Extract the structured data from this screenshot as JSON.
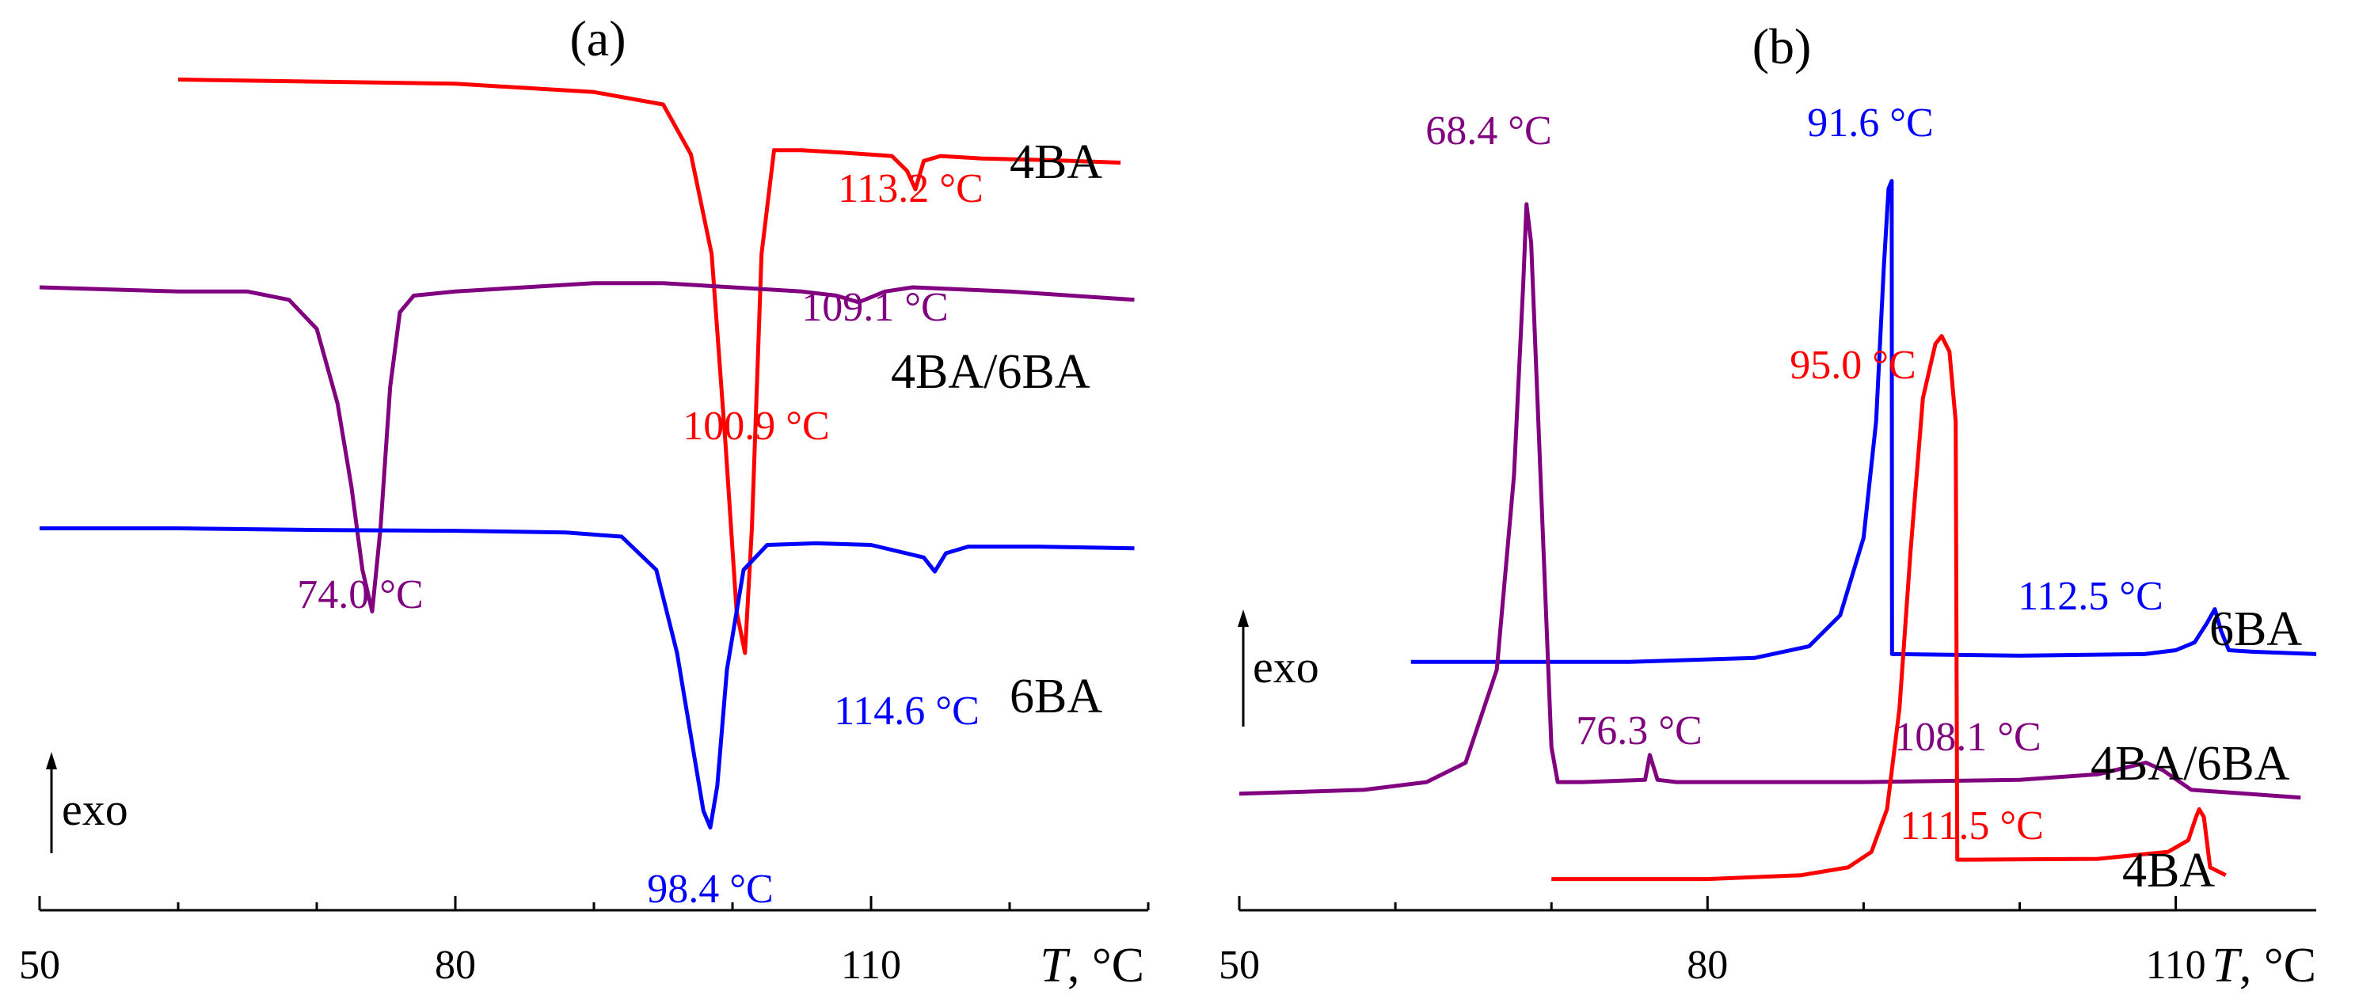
{
  "chart_data": [
    {
      "type": "line",
      "title": "(a)",
      "xlabel": "T, °C",
      "xlabel_italic": "T",
      "xlabel_unit": ", °C",
      "xlim": [
        50,
        130
      ],
      "x_ticks": [
        50,
        80,
        110
      ],
      "x_minor_step": 10,
      "exo_label": "exo",
      "series": [
        {
          "name": "4BA",
          "color": "#ff0000",
          "baseline": 0.92,
          "x": [
            60,
            80,
            90,
            95,
            97,
            98.5,
            99.5,
            100.3,
            100.9,
            101.4,
            102.1,
            103.0,
            105.0,
            108.0,
            111.5,
            112.6,
            113.2,
            113.8,
            115.0,
            118.0,
            123.0,
            128.0
          ],
          "y": [
            0.99,
            0.985,
            0.975,
            0.96,
            0.9,
            0.78,
            0.55,
            0.35,
            0.3,
            0.45,
            0.78,
            0.905,
            0.905,
            0.902,
            0.898,
            0.88,
            0.858,
            0.892,
            0.898,
            0.895,
            0.893,
            0.89
          ],
          "peak_labels": [
            {
              "x": 100.9,
              "y": 0.3,
              "text": "100.9 °C"
            },
            {
              "x": 113.2,
              "y": 0.858,
              "text": "113.2 °C"
            }
          ]
        },
        {
          "name": "4BA/6BA",
          "color": "#800080",
          "baseline": 0.66,
          "x": [
            50,
            60,
            65,
            68,
            70,
            71.5,
            72.5,
            73.3,
            74.0,
            74.6,
            75.3,
            76.0,
            77.0,
            80.0,
            85.0,
            90.0,
            95.0,
            100.0,
            105.0,
            107.5,
            109.1,
            111.0,
            113.0,
            120.0,
            129.0
          ],
          "y": [
            0.74,
            0.735,
            0.735,
            0.725,
            0.69,
            0.6,
            0.5,
            0.4,
            0.35,
            0.45,
            0.62,
            0.71,
            0.73,
            0.735,
            0.74,
            0.745,
            0.745,
            0.74,
            0.735,
            0.73,
            0.722,
            0.735,
            0.74,
            0.735,
            0.725
          ],
          "peak_labels": [
            {
              "x": 74.0,
              "y": 0.35,
              "text": "74.0 °C"
            },
            {
              "x": 109.1,
              "y": 0.722,
              "text": "109.1 °C"
            }
          ]
        },
        {
          "name": "6BA",
          "color": "#0000ff",
          "baseline": 0.36,
          "x": [
            50,
            60,
            70,
            80,
            88,
            92,
            94.5,
            96.0,
            97.2,
            97.9,
            98.4,
            98.9,
            99.6,
            100.8,
            102.5,
            106.0,
            110.0,
            113.8,
            114.6,
            115.4,
            117.0,
            122.0,
            129.0
          ],
          "y": [
            0.45,
            0.45,
            0.448,
            0.447,
            0.445,
            0.44,
            0.4,
            0.3,
            0.18,
            0.11,
            0.09,
            0.14,
            0.28,
            0.4,
            0.43,
            0.432,
            0.43,
            0.415,
            0.398,
            0.42,
            0.428,
            0.428,
            0.426
          ],
          "peak_labels": [
            {
              "x": 98.4,
              "y": 0.09,
              "text": "98.4 °C"
            },
            {
              "x": 114.6,
              "y": 0.398,
              "text": "114.6 °C"
            }
          ]
        }
      ]
    },
    {
      "type": "line",
      "title": "(b)",
      "xlabel": "T, °C",
      "xlabel_italic": "T",
      "xlabel_unit": ", °C",
      "xlim": [
        50,
        119
      ],
      "x_ticks": [
        50,
        80,
        110
      ],
      "x_minor_step": 10,
      "exo_label": "exo",
      "series": [
        {
          "name": "6BA",
          "color": "#0000ff",
          "baseline": 0.31,
          "x": [
            61,
            75,
            83,
            86.5,
            88.5,
            90.0,
            90.8,
            91.3,
            91.6,
            91.8,
            91.82,
            92.1,
            100,
            108,
            110,
            111.2,
            112.0,
            112.5,
            112.9,
            113.4,
            115,
            119
          ],
          "y": [
            0.31,
            0.31,
            0.315,
            0.33,
            0.37,
            0.47,
            0.62,
            0.82,
            0.92,
            0.93,
            0.32,
            0.32,
            0.318,
            0.32,
            0.325,
            0.335,
            0.36,
            0.378,
            0.35,
            0.325,
            0.323,
            0.32
          ],
          "peak_labels": [
            {
              "x": 91.6,
              "y": 0.93,
              "text": "91.6 °C"
            },
            {
              "x": 112.5,
              "y": 0.378,
              "text": "112.5 °C"
            }
          ]
        },
        {
          "name": "4BA/6BA",
          "color": "#800080",
          "baseline": 0.14,
          "x": [
            50,
            58,
            62,
            64.5,
            66.5,
            67.6,
            68.2,
            68.4,
            68.7,
            69.3,
            70.0,
            70.4,
            72,
            76.0,
            76.3,
            76.8,
            78,
            90,
            100,
            105,
            108.1,
            109.2,
            111,
            118
          ],
          "y": [
            0.14,
            0.145,
            0.155,
            0.18,
            0.3,
            0.55,
            0.8,
            0.9,
            0.85,
            0.55,
            0.2,
            0.155,
            0.155,
            0.158,
            0.19,
            0.158,
            0.155,
            0.155,
            0.158,
            0.165,
            0.18,
            0.17,
            0.145,
            0.135
          ],
          "peak_labels": [
            {
              "x": 68.4,
              "y": 0.9,
              "text": "68.4 °C"
            },
            {
              "x": 76.3,
              "y": 0.19,
              "text": "76.3 °C"
            },
            {
              "x": 108.1,
              "y": 0.18,
              "text": "108.1 °C"
            }
          ]
        },
        {
          "name": "4BA",
          "color": "#ff0000",
          "baseline": 0.03,
          "x": [
            70,
            80,
            86,
            89,
            90.5,
            91.5,
            92.3,
            93.0,
            93.8,
            94.6,
            95.0,
            95.5,
            95.9,
            96.0,
            97,
            105,
            109.5,
            110.8,
            111.3,
            111.5,
            111.8,
            112.2,
            113.2
          ],
          "y": [
            0.03,
            0.03,
            0.035,
            0.045,
            0.065,
            0.12,
            0.25,
            0.45,
            0.65,
            0.72,
            0.73,
            0.71,
            0.62,
            0.055,
            0.055,
            0.056,
            0.065,
            0.08,
            0.11,
            0.12,
            0.11,
            0.045,
            0.035
          ],
          "peak_labels": [
            {
              "x": 95.0,
              "y": 0.73,
              "text": "95.0 °C"
            },
            {
              "x": 111.5,
              "y": 0.12,
              "text": "111.5 °C"
            }
          ]
        }
      ]
    }
  ]
}
